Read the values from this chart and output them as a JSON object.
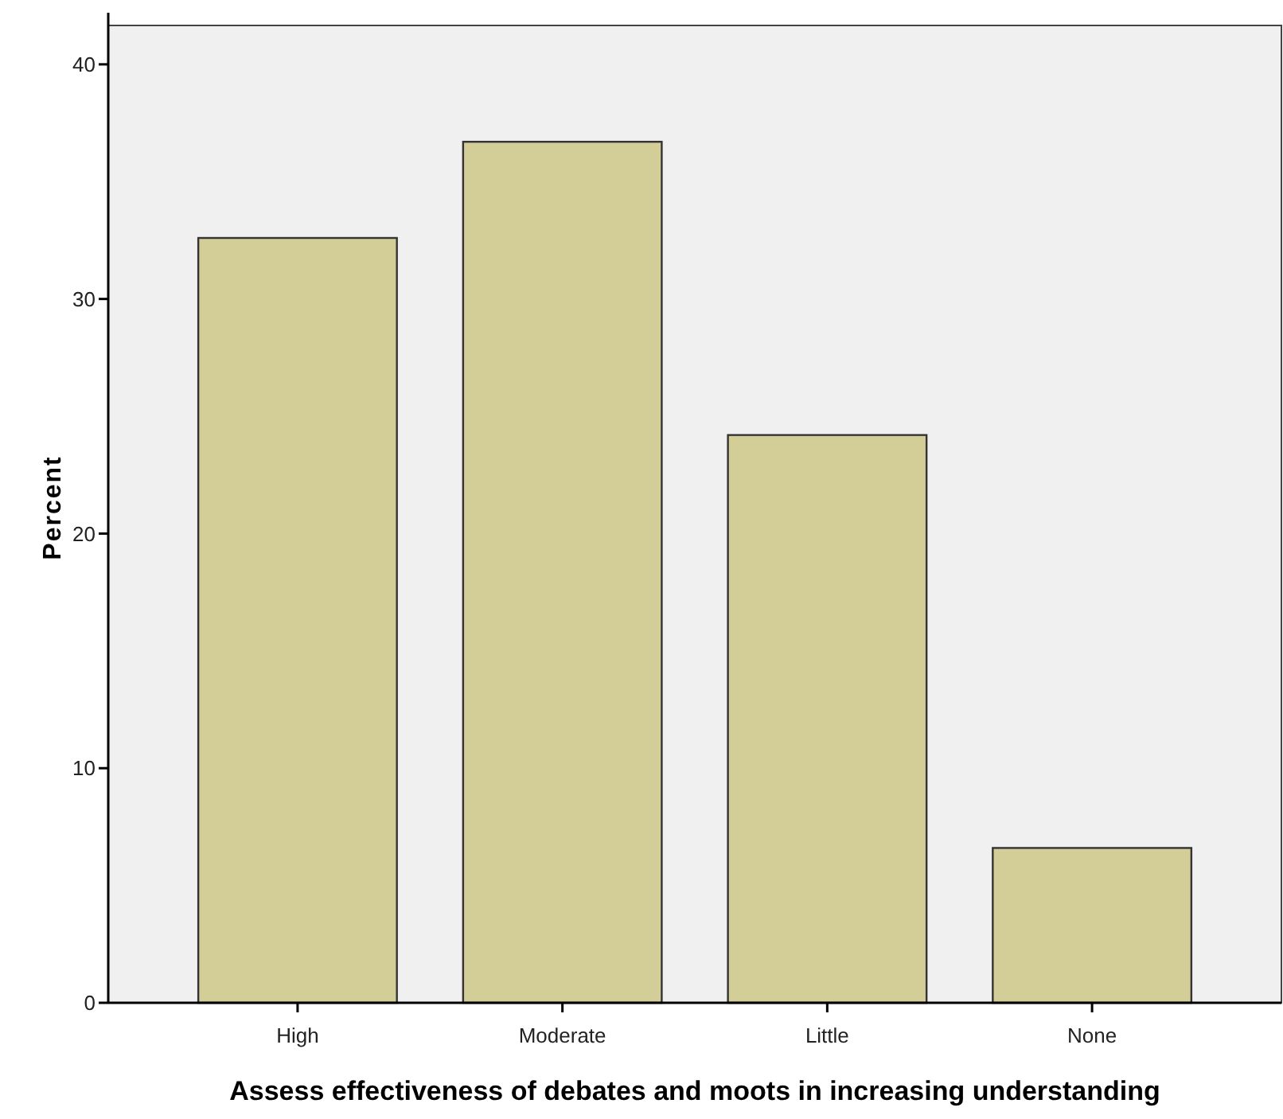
{
  "chart_data": {
    "type": "bar",
    "xlabel": "Assess effectiveness of debates and moots  in increasing understanding",
    "ylabel": "Percent",
    "categories": [
      "High",
      "Moderate",
      "Little",
      "None"
    ],
    "values": [
      32.6,
      36.7,
      24.2,
      6.6
    ],
    "color": "#d3cd97",
    "ylim": [
      0,
      42.2
    ],
    "yticks": [
      0,
      10,
      20,
      30,
      40
    ],
    "grid": false
  }
}
